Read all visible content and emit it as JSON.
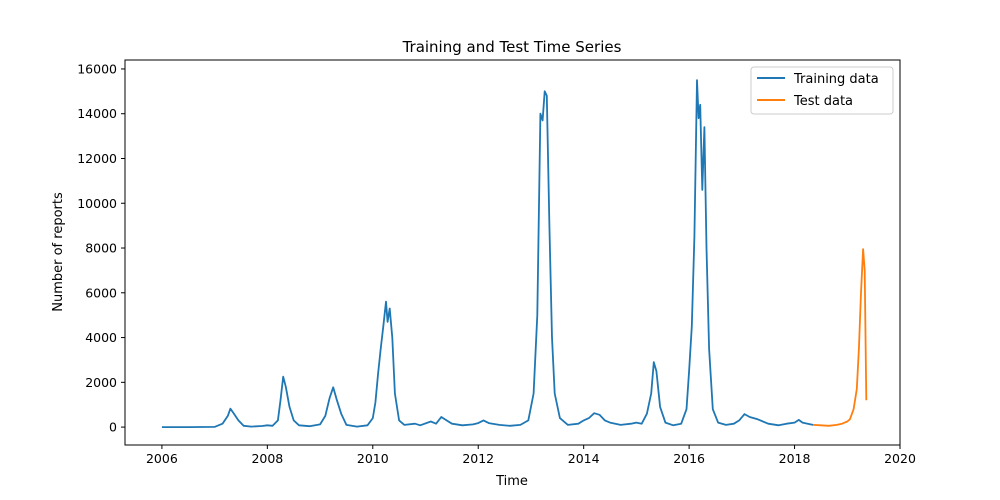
{
  "chart_data": {
    "type": "line",
    "title": "Training and Test Time Series",
    "xlabel": "Time",
    "ylabel": "Number of reports",
    "xlim": [
      2005.3,
      2020
    ],
    "ylim": [
      -800,
      16400
    ],
    "xticks": [
      2006,
      2008,
      2010,
      2012,
      2014,
      2016,
      2018,
      2020
    ],
    "yticks": [
      0,
      2000,
      4000,
      6000,
      8000,
      10000,
      12000,
      14000,
      16000
    ],
    "grid": false,
    "legend": "top-right",
    "series": [
      {
        "name": "Training data",
        "color": "#1f77b4",
        "points": [
          [
            2006.0,
            0
          ],
          [
            2006.5,
            0
          ],
          [
            2007.0,
            10
          ],
          [
            2007.15,
            150
          ],
          [
            2007.25,
            500
          ],
          [
            2007.3,
            820
          ],
          [
            2007.35,
            650
          ],
          [
            2007.45,
            300
          ],
          [
            2007.55,
            60
          ],
          [
            2007.7,
            20
          ],
          [
            2007.9,
            50
          ],
          [
            2008.0,
            80
          ],
          [
            2008.1,
            60
          ],
          [
            2008.2,
            300
          ],
          [
            2008.25,
            1200
          ],
          [
            2008.3,
            2250
          ],
          [
            2008.35,
            1800
          ],
          [
            2008.42,
            900
          ],
          [
            2008.5,
            300
          ],
          [
            2008.6,
            80
          ],
          [
            2008.8,
            40
          ],
          [
            2009.0,
            120
          ],
          [
            2009.1,
            500
          ],
          [
            2009.18,
            1300
          ],
          [
            2009.25,
            1780
          ],
          [
            2009.32,
            1200
          ],
          [
            2009.4,
            600
          ],
          [
            2009.5,
            100
          ],
          [
            2009.7,
            20
          ],
          [
            2009.9,
            80
          ],
          [
            2010.0,
            400
          ],
          [
            2010.05,
            1100
          ],
          [
            2010.1,
            2400
          ],
          [
            2010.15,
            3500
          ],
          [
            2010.2,
            4500
          ],
          [
            2010.25,
            5600
          ],
          [
            2010.28,
            4700
          ],
          [
            2010.32,
            5300
          ],
          [
            2010.37,
            4000
          ],
          [
            2010.42,
            1500
          ],
          [
            2010.5,
            300
          ],
          [
            2010.6,
            100
          ],
          [
            2010.8,
            150
          ],
          [
            2010.9,
            80
          ],
          [
            2011.1,
            250
          ],
          [
            2011.2,
            150
          ],
          [
            2011.3,
            450
          ],
          [
            2011.4,
            300
          ],
          [
            2011.5,
            150
          ],
          [
            2011.7,
            80
          ],
          [
            2011.9,
            120
          ],
          [
            2012.0,
            180
          ],
          [
            2012.1,
            300
          ],
          [
            2012.2,
            180
          ],
          [
            2012.4,
            100
          ],
          [
            2012.6,
            60
          ],
          [
            2012.8,
            100
          ],
          [
            2012.95,
            300
          ],
          [
            2013.05,
            1500
          ],
          [
            2013.12,
            5000
          ],
          [
            2013.18,
            14000
          ],
          [
            2013.22,
            13700
          ],
          [
            2013.26,
            15000
          ],
          [
            2013.3,
            14800
          ],
          [
            2013.35,
            9000
          ],
          [
            2013.4,
            4000
          ],
          [
            2013.45,
            1500
          ],
          [
            2013.55,
            400
          ],
          [
            2013.7,
            100
          ],
          [
            2013.9,
            150
          ],
          [
            2014.0,
            300
          ],
          [
            2014.1,
            400
          ],
          [
            2014.2,
            620
          ],
          [
            2014.3,
            550
          ],
          [
            2014.4,
            300
          ],
          [
            2014.5,
            200
          ],
          [
            2014.7,
            100
          ],
          [
            2014.9,
            150
          ],
          [
            2015.0,
            200
          ],
          [
            2015.1,
            150
          ],
          [
            2015.2,
            600
          ],
          [
            2015.28,
            1500
          ],
          [
            2015.33,
            2900
          ],
          [
            2015.38,
            2500
          ],
          [
            2015.45,
            900
          ],
          [
            2015.55,
            200
          ],
          [
            2015.7,
            80
          ],
          [
            2015.85,
            150
          ],
          [
            2015.95,
            800
          ],
          [
            2016.0,
            2500
          ],
          [
            2016.05,
            4500
          ],
          [
            2016.1,
            8500
          ],
          [
            2016.15,
            15500
          ],
          [
            2016.18,
            13800
          ],
          [
            2016.21,
            14400
          ],
          [
            2016.25,
            10600
          ],
          [
            2016.29,
            13400
          ],
          [
            2016.33,
            8000
          ],
          [
            2016.38,
            3500
          ],
          [
            2016.45,
            800
          ],
          [
            2016.55,
            200
          ],
          [
            2016.7,
            100
          ],
          [
            2016.85,
            150
          ],
          [
            2016.95,
            300
          ],
          [
            2017.05,
            580
          ],
          [
            2017.15,
            450
          ],
          [
            2017.3,
            350
          ],
          [
            2017.5,
            150
          ],
          [
            2017.7,
            80
          ],
          [
            2017.85,
            150
          ],
          [
            2018.0,
            200
          ],
          [
            2018.08,
            320
          ],
          [
            2018.15,
            200
          ],
          [
            2018.25,
            150
          ],
          [
            2018.35,
            100
          ]
        ]
      },
      {
        "name": "Test data",
        "color": "#ff7f0e",
        "points": [
          [
            2018.35,
            100
          ],
          [
            2018.5,
            80
          ],
          [
            2018.65,
            60
          ],
          [
            2018.8,
            100
          ],
          [
            2018.9,
            150
          ],
          [
            2019.0,
            250
          ],
          [
            2019.05,
            350
          ],
          [
            2019.12,
            800
          ],
          [
            2019.18,
            1700
          ],
          [
            2019.22,
            3500
          ],
          [
            2019.26,
            6000
          ],
          [
            2019.3,
            7950
          ],
          [
            2019.33,
            7000
          ],
          [
            2019.36,
            1200
          ]
        ]
      }
    ]
  }
}
